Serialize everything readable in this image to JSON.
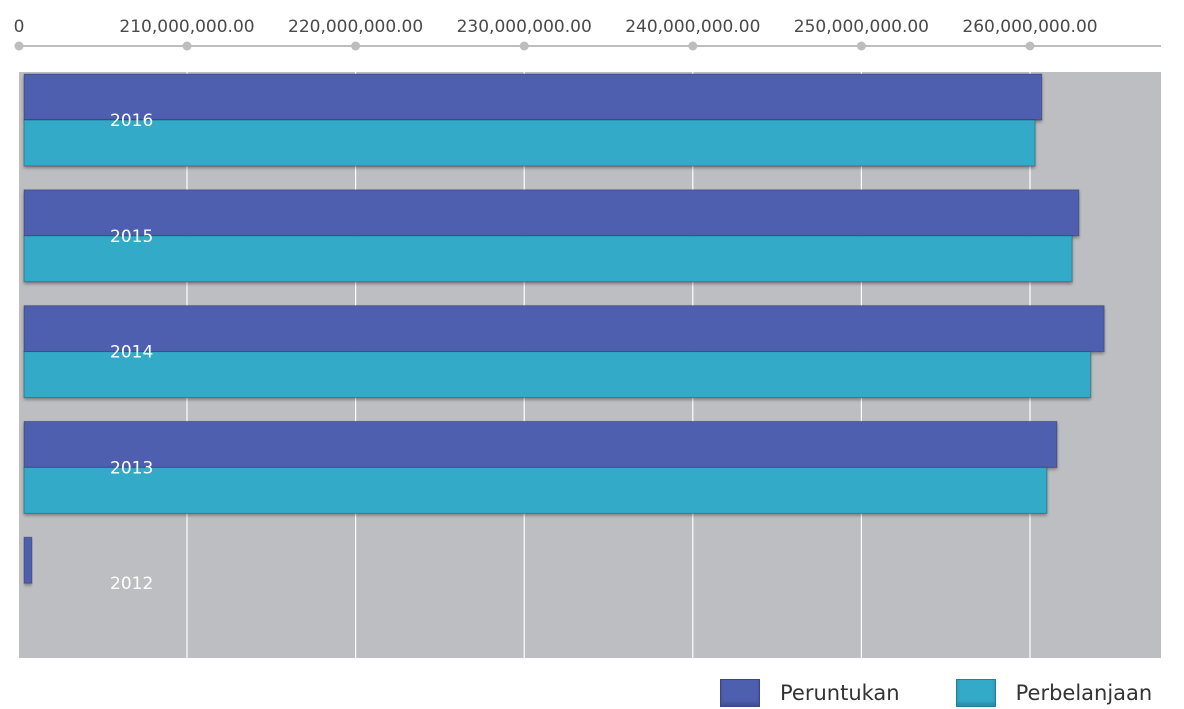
{
  "chart_data": {
    "type": "bar",
    "orientation": "horizontal",
    "categories": [
      "2016",
      "2015",
      "2014",
      "2013",
      "2012"
    ],
    "series": [
      {
        "name": "Peruntukan",
        "color": "#4f5fb0",
        "values": [
          260700000,
          262900000,
          264400000,
          261600000,
          200800000
        ]
      },
      {
        "name": "Perbelanjaan",
        "color": "#33aac8",
        "values": [
          260300000,
          262500000,
          263600000,
          261000000,
          199900000
        ]
      }
    ],
    "x_ticks": [
      {
        "value": 0,
        "label": "0"
      },
      {
        "value": 210000000,
        "label": "210,000,000.00"
      },
      {
        "value": 220000000,
        "label": "220,000,000.00"
      },
      {
        "value": 230000000,
        "label": "230,000,000.00"
      },
      {
        "value": 240000000,
        "label": "240,000,000.00"
      },
      {
        "value": 250000000,
        "label": "250,000,000.00"
      },
      {
        "value": 260000000,
        "label": "260,000,000.00"
      }
    ],
    "axis_position": "top",
    "axis_note": "axis is broken between 0 and 210,000,000.00; ticks evenly spaced",
    "xlim": [
      0,
      266800000
    ],
    "grid": true,
    "plot_background": "#bdbec2",
    "legend_position": "bottom-right"
  }
}
